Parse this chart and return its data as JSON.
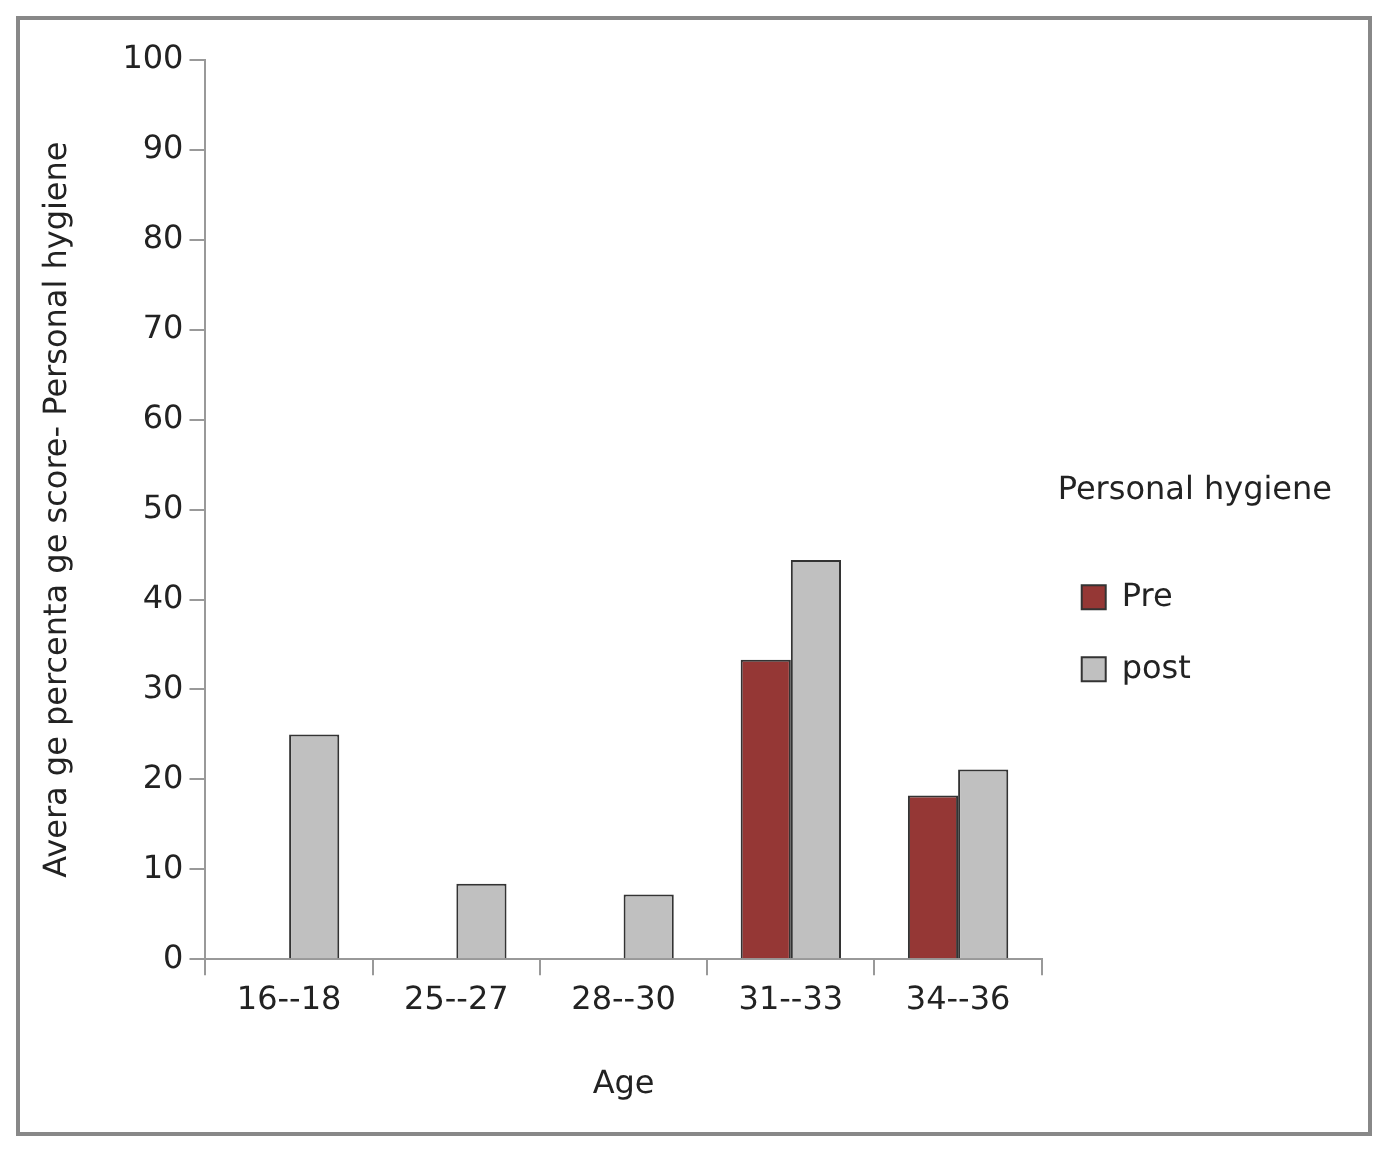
{
  "chart_data": {
    "type": "bar",
    "xlabel": "Age",
    "ylabel": "Avera ge percenta ge score- Personal hygiene",
    "legend_title": "Personal hygiene",
    "categories": [
      "16--18",
      "25--27",
      "28--30",
      "31--33",
      "34--36"
    ],
    "series": [
      {
        "name": "Pre",
        "color": "#953735",
        "values": [
          0,
          0,
          0,
          33.3,
          18.2
        ]
      },
      {
        "name": "post",
        "color": "#c0c0c0",
        "values": [
          25,
          8.4,
          7.2,
          44.4,
          21.1
        ]
      }
    ],
    "ylim": [
      0,
      100
    ],
    "yticks": [
      0,
      10,
      20,
      30,
      40,
      50,
      60,
      70,
      80,
      90,
      100
    ],
    "grid": false,
    "legend": "right"
  }
}
